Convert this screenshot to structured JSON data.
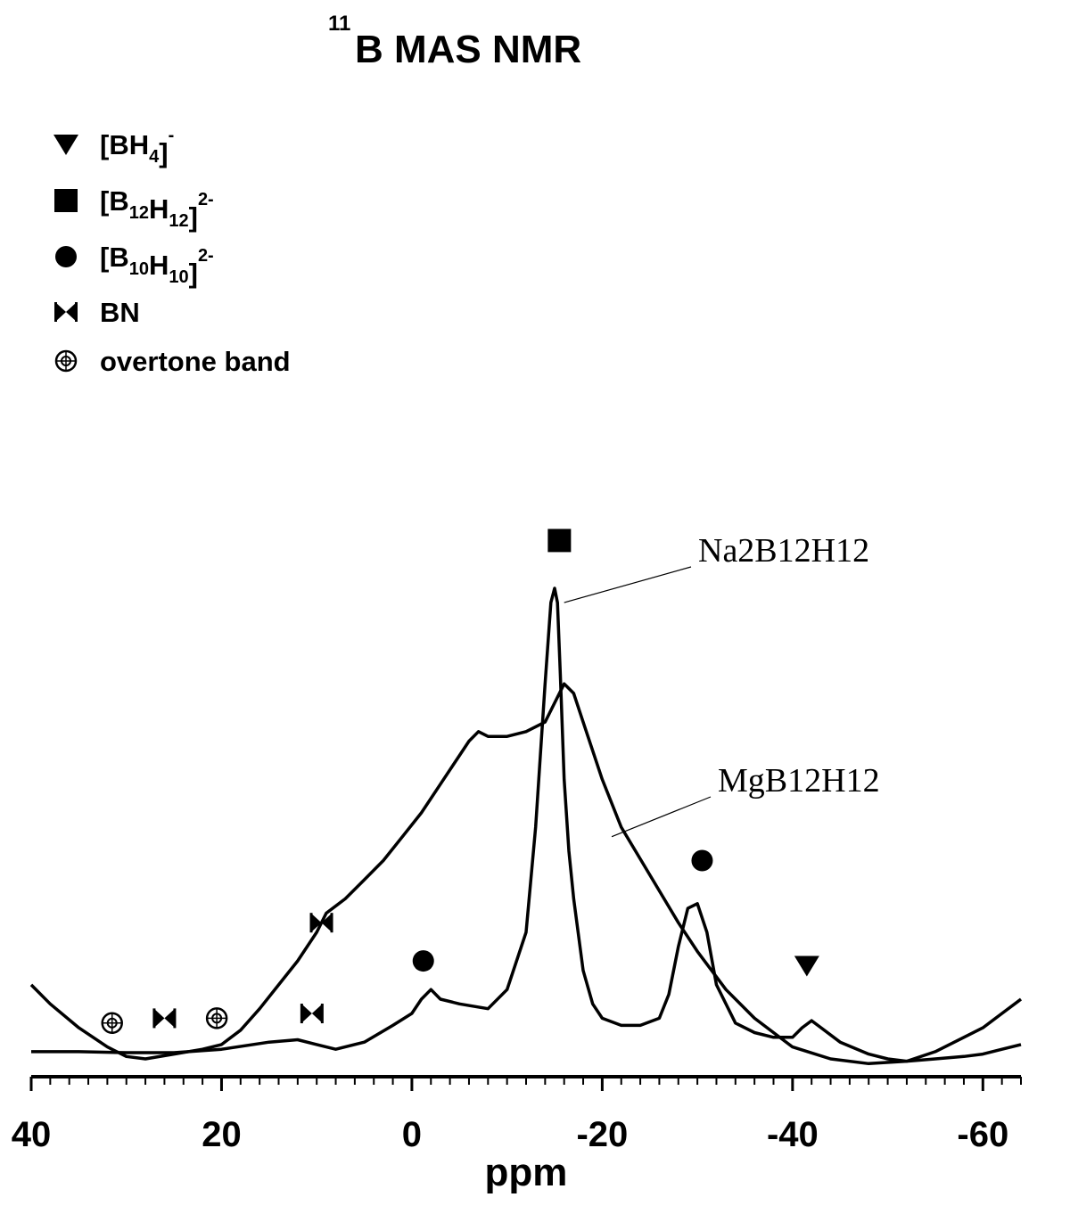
{
  "chart_data": {
    "type": "line",
    "title": {
      "sup": "11",
      "main": "B MAS NMR"
    },
    "xlabel": "ppm",
    "xlim": [
      40,
      -64
    ],
    "x_reversed": true,
    "ylim": [
      0,
      1.0
    ],
    "grid": false,
    "x_ticks": [
      40,
      20,
      0,
      -20,
      -40,
      -60
    ],
    "x_tick_labels": [
      "40",
      "20",
      "0",
      "-20",
      "-40",
      "-60"
    ],
    "legend": {
      "placement": "top-left",
      "entries": [
        {
          "marker": "triangle-down",
          "parts": [
            {
              "t": "[BH"
            },
            {
              "t": "4",
              "s": "sub"
            },
            {
              "t": "]"
            },
            {
              "t": "-",
              "s": "sup"
            }
          ]
        },
        {
          "marker": "square",
          "parts": [
            {
              "t": "[B"
            },
            {
              "t": "12",
              "s": "sub"
            },
            {
              "t": "H"
            },
            {
              "t": "12",
              "s": "sub"
            },
            {
              "t": "]"
            },
            {
              "t": "2-",
              "s": "sup"
            }
          ]
        },
        {
          "marker": "circle",
          "parts": [
            {
              "t": "[B"
            },
            {
              "t": "10",
              "s": "sub"
            },
            {
              "t": "H"
            },
            {
              "t": "10",
              "s": "sub"
            },
            {
              "t": "]"
            },
            {
              "t": "2-",
              "s": "sup"
            }
          ]
        },
        {
          "marker": "bowtie",
          "parts": [
            {
              "t": "BN"
            }
          ]
        },
        {
          "marker": "circle-cross",
          "parts": [
            {
              "t": "overtone band"
            }
          ]
        }
      ]
    },
    "series": [
      {
        "name": "Na2B12H12",
        "x": [
          40,
          35,
          30,
          25,
          20,
          15,
          12,
          10,
          8,
          5,
          2,
          0,
          -1,
          -2,
          -3,
          -5,
          -8,
          -10,
          -12,
          -13,
          -14,
          -14.6,
          -15,
          -15.3,
          -15.6,
          -16,
          -16.5,
          -17,
          -18,
          -19,
          -20,
          -22,
          -24,
          -26,
          -27,
          -28,
          -29,
          -30,
          -31,
          -32,
          -34,
          -36,
          -38,
          -40,
          -41,
          -42,
          -43,
          -45,
          -48,
          -50,
          -52,
          -55,
          -58,
          -60,
          -62,
          -64
        ],
        "y": [
          0.03,
          0.03,
          0.028,
          0.028,
          0.035,
          0.05,
          0.055,
          0.045,
          0.035,
          0.05,
          0.085,
          0.11,
          0.14,
          0.16,
          0.14,
          0.13,
          0.12,
          0.16,
          0.28,
          0.5,
          0.8,
          0.97,
          1.0,
          0.97,
          0.82,
          0.6,
          0.45,
          0.35,
          0.2,
          0.13,
          0.1,
          0.085,
          0.085,
          0.1,
          0.15,
          0.25,
          0.33,
          0.34,
          0.28,
          0.17,
          0.09,
          0.07,
          0.06,
          0.06,
          0.08,
          0.095,
          0.08,
          0.05,
          0.025,
          0.015,
          0.01,
          0.015,
          0.02,
          0.025,
          0.035,
          0.045
        ]
      },
      {
        "name": "MgB12H12",
        "x": [
          40,
          38,
          35,
          32,
          30,
          28,
          25,
          22,
          20,
          18,
          16,
          14,
          12,
          10,
          9,
          7,
          5,
          3,
          1,
          -1,
          -3,
          -5,
          -6,
          -7,
          -8,
          -10,
          -12,
          -14,
          -15,
          -16,
          -17,
          -18,
          -20,
          -22,
          -25,
          -28,
          -30,
          -33,
          -36,
          -40,
          -44,
          -48,
          -52,
          -55,
          -58,
          -60,
          -62,
          -64
        ],
        "y": [
          0.17,
          0.13,
          0.08,
          0.04,
          0.02,
          0.015,
          0.025,
          0.035,
          0.045,
          0.075,
          0.12,
          0.17,
          0.22,
          0.28,
          0.32,
          0.35,
          0.39,
          0.43,
          0.48,
          0.53,
          0.59,
          0.65,
          0.68,
          0.7,
          0.69,
          0.69,
          0.7,
          0.72,
          0.76,
          0.8,
          0.78,
          0.72,
          0.6,
          0.5,
          0.4,
          0.3,
          0.24,
          0.16,
          0.1,
          0.04,
          0.015,
          0.005,
          0.01,
          0.03,
          0.06,
          0.08,
          0.11,
          0.14
        ]
      }
    ],
    "series_labels": [
      {
        "text": "Na2B12H12",
        "series": "Na2B12H12",
        "leader_x": -16,
        "leader_y": 0.97
      },
      {
        "text": "MgB12H12",
        "series": "MgB12H12",
        "leader_x": -21,
        "leader_y": 0.48
      }
    ],
    "annotations": [
      {
        "marker": "square",
        "x": -15.5,
        "y": 1.1
      },
      {
        "marker": "circle",
        "x": -1.2,
        "y": 0.22
      },
      {
        "marker": "circle",
        "x": -30.5,
        "y": 0.43
      },
      {
        "marker": "triangle-down",
        "x": -41.5,
        "y": 0.21
      },
      {
        "marker": "bowtie",
        "x": 9.5,
        "y": 0.3
      },
      {
        "marker": "bowtie",
        "x": 10.5,
        "y": 0.11
      },
      {
        "marker": "bowtie",
        "x": 26,
        "y": 0.1
      },
      {
        "marker": "circle-cross",
        "x": 31.5,
        "y": 0.09
      },
      {
        "marker": "circle-cross",
        "x": 20.5,
        "y": 0.1
      }
    ]
  }
}
